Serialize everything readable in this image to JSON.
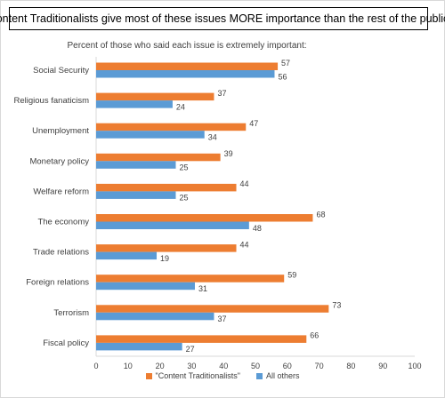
{
  "chart_data": {
    "type": "bar",
    "orientation": "horizontal",
    "title": "Content Traditionalists give most of these issues MORE importance than the rest of the public",
    "subtitle": "Percent of those who said each issue is extremely important:",
    "categories": [
      "Social Security",
      "Religious fanaticism",
      "Unemployment",
      "Monetary policy",
      "Welfare reform",
      "The economy",
      "Trade relations",
      "Foreign relations",
      "Terrorism",
      "Fiscal policy"
    ],
    "series": [
      {
        "name": "\"Content Traditionalists\"",
        "color": "#ed7d31",
        "values": [
          57,
          37,
          47,
          39,
          44,
          68,
          44,
          59,
          73,
          66
        ]
      },
      {
        "name": "All others",
        "color": "#5b9bd5",
        "values": [
          56,
          24,
          34,
          25,
          25,
          48,
          19,
          31,
          37,
          27
        ]
      }
    ],
    "xlim": [
      0,
      100
    ],
    "xticks": [
      0,
      10,
      20,
      30,
      40,
      50,
      60,
      70,
      80,
      90,
      100
    ],
    "grid": false,
    "legend_position": "bottom"
  }
}
